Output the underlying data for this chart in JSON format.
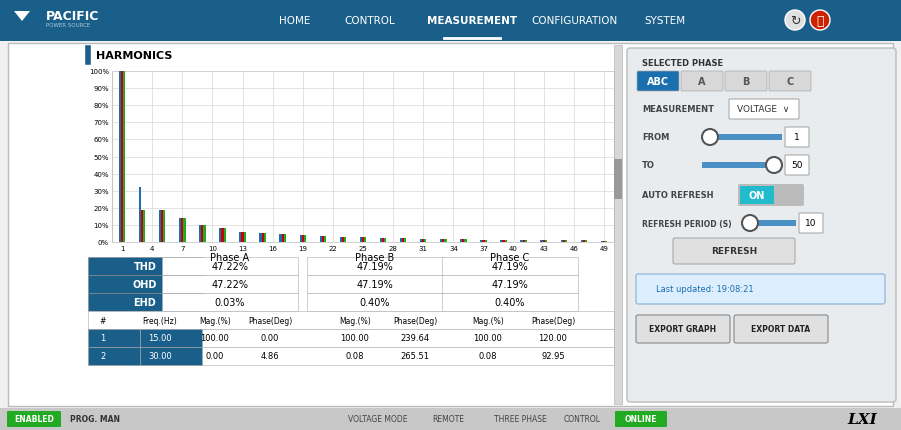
{
  "nav_bg": "#1a5f8a",
  "body_bg": "#f0f0f0",
  "nav_items": [
    "HOME",
    "CONTROL",
    "MEASUREMENT",
    "CONFIGURATION",
    "SYSTEM"
  ],
  "nav_active": "MEASUREMENT",
  "title": "HARMONICS",
  "chart_grid_color": "#d8d8d8",
  "bar_colors": [
    "#1a6faf",
    "#cc0000",
    "#22aa22"
  ],
  "y_ticks": [
    "0%",
    "10%",
    "20%",
    "30%",
    "40%",
    "50%",
    "60%",
    "70%",
    "80%",
    "90%",
    "100%"
  ],
  "x_ticks": [
    1,
    4,
    7,
    10,
    13,
    16,
    19,
    22,
    25,
    28,
    31,
    34,
    37,
    40,
    43,
    46,
    49
  ],
  "harmonics_data": {
    "1": [
      100,
      100,
      100
    ],
    "3": [
      32,
      19,
      19
    ],
    "5": [
      19,
      19,
      19
    ],
    "7": [
      14,
      14,
      14
    ],
    "9": [
      10,
      10,
      10
    ],
    "11": [
      8,
      8,
      8
    ],
    "13": [
      6,
      6,
      6
    ],
    "15": [
      5,
      5,
      5
    ],
    "17": [
      4.5,
      4.5,
      4.5
    ],
    "19": [
      4,
      4,
      4
    ],
    "21": [
      3.5,
      3.5,
      3.5
    ],
    "23": [
      3,
      3,
      3
    ],
    "25": [
      2.8,
      2.8,
      2.8
    ],
    "27": [
      2.5,
      2.5,
      2.5
    ],
    "29": [
      2.2,
      2.2,
      2.2
    ],
    "31": [
      2.0,
      2.0,
      2.0
    ],
    "33": [
      1.8,
      1.8,
      1.8
    ],
    "35": [
      1.6,
      1.6,
      1.6
    ],
    "37": [
      1.4,
      1.4,
      1.4
    ],
    "39": [
      1.3,
      1.3,
      1.3
    ],
    "41": [
      1.2,
      1.2,
      1.2
    ],
    "43": [
      1.1,
      1.1,
      1.1
    ],
    "45": [
      1.0,
      1.0,
      1.0
    ],
    "47": [
      0.9,
      0.9,
      0.9
    ],
    "49": [
      0.8,
      0.8,
      0.8
    ]
  },
  "table_header_bg": "#1a5f8a",
  "thd_values": [
    "47.22%",
    "47.19%",
    "47.19%"
  ],
  "ohd_values": [
    "47.22%",
    "47.19%",
    "47.19%"
  ],
  "ehd_values": [
    "0.03%",
    "0.40%",
    "0.40%"
  ],
  "table_rows": [
    [
      1,
      "15.00",
      "100.00",
      "0.00",
      "100.00",
      "239.64",
      "100.00",
      "120.00"
    ],
    [
      2,
      "30.00",
      "0.00",
      "4.86",
      "0.08",
      "265.51",
      "0.08",
      "92.95"
    ]
  ],
  "panel_bg": "#e8ecef",
  "phase_buttons": [
    "ABC",
    "A",
    "B",
    "C"
  ],
  "phase_active": "ABC",
  "phase_active_bg": "#1a6faf",
  "measurement_value": "VOLTAGE",
  "from_value": "1",
  "to_value": "50",
  "refresh_period_value": "10",
  "last_updated": "Last updated: 19:08:21",
  "export_graph_btn": "EXPORT GRAPH",
  "export_data_btn": "EXPORT DATA",
  "status_bar_bg": "#c8c8c8",
  "enabled_bg": "#22aa22",
  "online_bg": "#22aa22",
  "slider_track_color": "#4a90c4",
  "on_btn_bg": "#22bbcc",
  "nav_icon_refresh_bg": "#e0e0e0",
  "nav_icon_power_bg": "#cc2200"
}
